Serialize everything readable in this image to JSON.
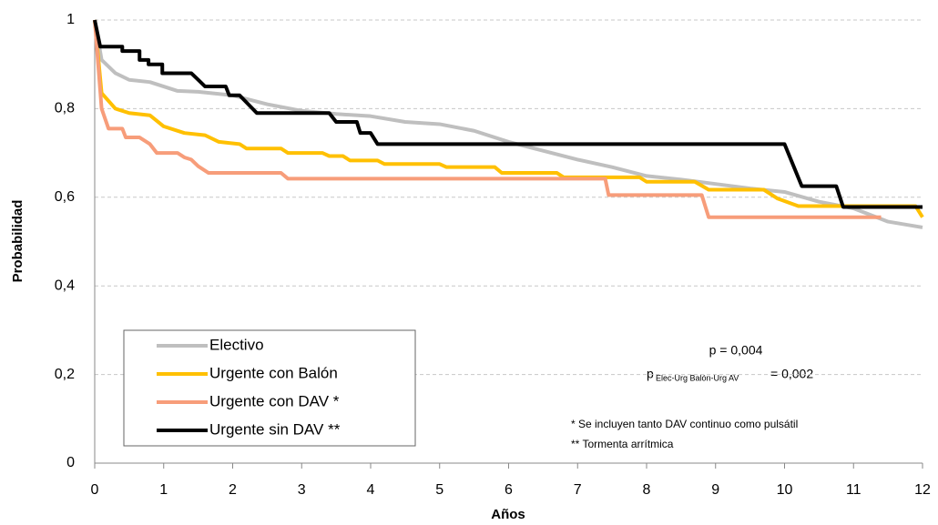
{
  "chart_data": {
    "type": "line",
    "x_label": "Años",
    "y_label": "Probabilidad",
    "xlim": [
      0,
      12
    ],
    "xticks": [
      0,
      1,
      2,
      3,
      4,
      5,
      6,
      7,
      8,
      9,
      10,
      11,
      12
    ],
    "ylim": [
      0,
      1
    ],
    "yticks": [
      0,
      {
        "value": 0.2,
        "label": "0,2"
      },
      {
        "value": 0.4,
        "label": "0,4"
      },
      {
        "value": 0.6,
        "label": "0,6"
      },
      {
        "value": 0.8,
        "label": "0,8"
      },
      1
    ],
    "grid": true,
    "series": [
      {
        "name": "Electivo",
        "color": "#bfbfbf",
        "x": [
          0,
          0.1,
          0.3,
          0.5,
          0.8,
          1,
          1.2,
          1.5,
          2,
          2.5,
          3,
          3.5,
          4,
          4.5,
          5,
          5.5,
          6,
          6.5,
          7,
          7.5,
          8,
          8.5,
          9,
          9.5,
          10,
          10.5,
          11,
          11.5,
          12
        ],
        "values": [
          1,
          0.91,
          0.88,
          0.865,
          0.86,
          0.85,
          0.84,
          0.838,
          0.83,
          0.81,
          0.795,
          0.788,
          0.783,
          0.77,
          0.765,
          0.75,
          0.725,
          0.705,
          0.685,
          0.668,
          0.648,
          0.64,
          0.63,
          0.62,
          0.612,
          0.59,
          0.575,
          0.545,
          0.532
        ]
      },
      {
        "name": "Urgente con Balón",
        "color": "#ffc000",
        "x": [
          0,
          0.1,
          0.3,
          0.5,
          0.8,
          1,
          1.3,
          1.6,
          1.8,
          2.1,
          2.2,
          2.7,
          2.8,
          3.3,
          3.4,
          3.6,
          3.7,
          4.1,
          4.2,
          5,
          5.1,
          5.8,
          5.9,
          6.7,
          6.8,
          7.9,
          8,
          8.7,
          8.9,
          9.7,
          9.9,
          10.2,
          11.9,
          12
        ],
        "values": [
          1,
          0.835,
          0.8,
          0.79,
          0.785,
          0.76,
          0.745,
          0.74,
          0.725,
          0.72,
          0.71,
          0.71,
          0.7,
          0.7,
          0.693,
          0.693,
          0.683,
          0.683,
          0.675,
          0.675,
          0.668,
          0.668,
          0.655,
          0.655,
          0.645,
          0.645,
          0.635,
          0.635,
          0.617,
          0.617,
          0.597,
          0.58,
          0.58,
          0.555
        ]
      },
      {
        "name": "Urgente con DAV *",
        "color": "#f79d7a",
        "x": [
          0,
          0.1,
          0.2,
          0.4,
          0.45,
          0.65,
          0.8,
          0.9,
          1.2,
          1.3,
          1.4,
          1.5,
          1.65,
          2.7,
          2.8,
          7.4,
          7.45,
          8.8,
          8.9,
          11.4
        ],
        "values": [
          1,
          0.8,
          0.755,
          0.755,
          0.735,
          0.735,
          0.72,
          0.7,
          0.7,
          0.69,
          0.685,
          0.67,
          0.655,
          0.655,
          0.642,
          0.642,
          0.605,
          0.605,
          0.555,
          0.555
        ]
      },
      {
        "name": "Urgente sin DAV **",
        "color": "#000000",
        "x": [
          0,
          0.08,
          0.4,
          0.4,
          0.65,
          0.65,
          0.78,
          0.78,
          0.98,
          0.98,
          1.4,
          1.5,
          1.6,
          1.9,
          1.95,
          2.1,
          2.35,
          3.4,
          3.5,
          3.8,
          3.85,
          4.0,
          4.1,
          10.0,
          10.25,
          10.75,
          10.85,
          12
        ],
        "values": [
          1,
          0.94,
          0.94,
          0.93,
          0.93,
          0.91,
          0.91,
          0.9,
          0.9,
          0.88,
          0.88,
          0.865,
          0.85,
          0.85,
          0.83,
          0.83,
          0.79,
          0.79,
          0.77,
          0.77,
          0.745,
          0.745,
          0.72,
          0.72,
          0.625,
          0.625,
          0.578,
          0.578
        ]
      }
    ],
    "p_value": "p = 0,004",
    "p_sub_main": "p",
    "p_sub_index": "Elec-Urg Balón-Urg AV",
    "p_sub_value": "= 0,002",
    "footnotes": [
      "* Se incluyen tanto DAV continuo como pulsátil",
      "** Tormenta  arrítmica"
    ]
  }
}
